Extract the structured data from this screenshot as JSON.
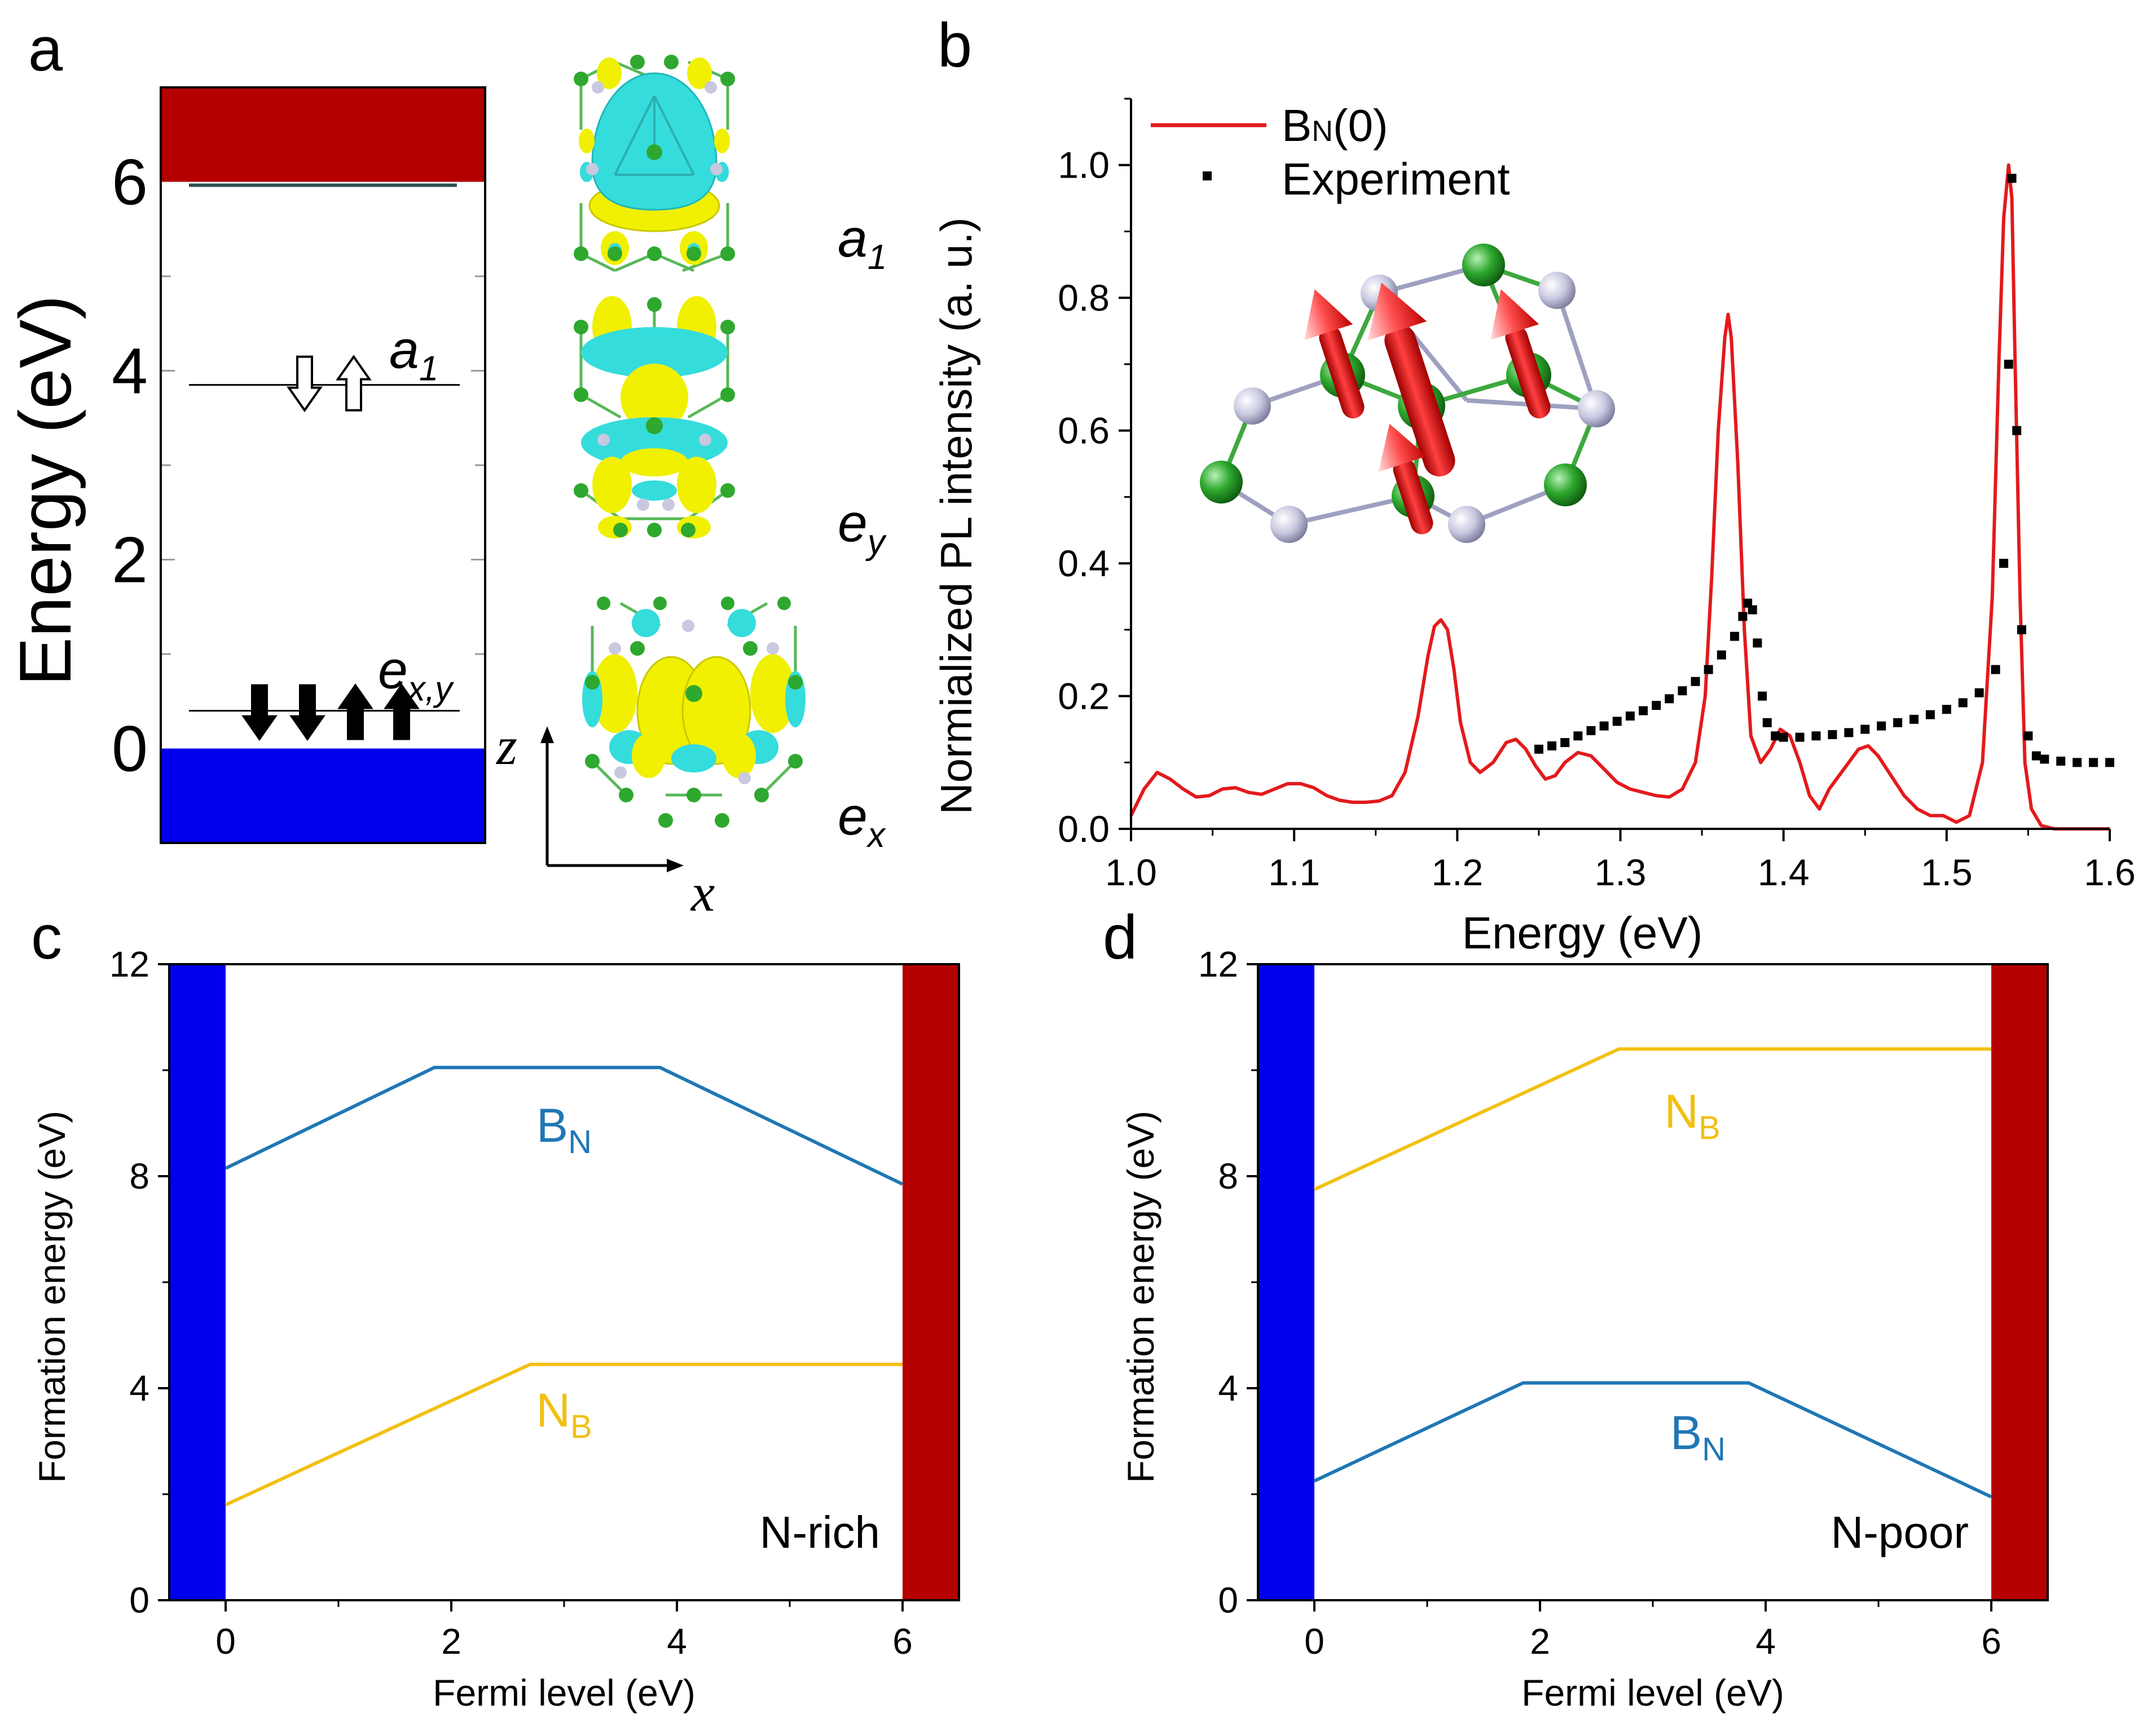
{
  "colors": {
    "vbm": "#0000ee",
    "cbm": "#b50000",
    "bn_pl": "#e31a1c",
    "experiment": "#000000",
    "bn_defect": "#1f77b4",
    "nb_defect": "#f2c012",
    "iso_yellow": "#f0f000",
    "iso_cyan": "#34dcdc",
    "atom_n": "#2ea82e",
    "atom_b": "#c8c8e0",
    "spin_arrow": "#e8161c"
  },
  "icons": [
    "spin-down-arrow-icon",
    "spin-up-arrow-icon",
    "spin-moment-arrow-icon"
  ],
  "panels": {
    "a": {
      "label": "a",
      "ylabel": "Energy (eV)",
      "ylim": [
        -1,
        7
      ],
      "yticks": [
        "0",
        "2",
        "4",
        "6"
      ],
      "ytick_values": [
        0,
        2,
        4,
        6
      ],
      "vbm_top": 0,
      "cbm_bottom": 6,
      "levels": [
        {
          "name": "a1",
          "energy": 3.85,
          "label": "a",
          "sub": "1",
          "occupancy": "one down, one up (hollow)"
        },
        {
          "name": "exy",
          "energy": 0.4,
          "label": "e",
          "sub": "x,y",
          "occupancy": "two down, two up (filled)"
        }
      ],
      "orbitals": [
        {
          "label": "a",
          "sub": "1"
        },
        {
          "label": "e",
          "sub": "y"
        },
        {
          "label": "e",
          "sub": "x"
        }
      ],
      "axes": {
        "z": "z",
        "x": "x"
      }
    },
    "b": {
      "label": "b",
      "xlabel": "Energy (eV)",
      "ylabel": "Normialized PL intensity (a. u.)",
      "xticks": [
        "1.0",
        "1.1",
        "1.2",
        "1.3",
        "1.4",
        "1.5",
        "1.6"
      ],
      "yticks": [
        "0.0",
        "0.2",
        "0.4",
        "0.6",
        "0.8",
        "1.0"
      ],
      "legend": [
        {
          "label": "B",
          "sub": "N",
          "suffix": "(0)"
        },
        {
          "label": "Experiment"
        }
      ]
    },
    "c": {
      "label": "c",
      "xlabel": "Fermi level (eV)",
      "ylabel": "Formation energy (eV)",
      "xticks": [
        "0",
        "2",
        "4",
        "6"
      ],
      "yticks": [
        "0",
        "4",
        "8",
        "12"
      ],
      "condition": "N-rich",
      "defect_labels": [
        {
          "label": "B",
          "sub": "N"
        },
        {
          "label": "N",
          "sub": "B"
        }
      ]
    },
    "d": {
      "label": "d",
      "xlabel": "Fermi level (eV)",
      "ylabel": "Formation energy (eV)",
      "xticks": [
        "0",
        "2",
        "4",
        "6"
      ],
      "yticks": [
        "0",
        "4",
        "8",
        "12"
      ],
      "condition": "N-poor",
      "defect_labels": [
        {
          "label": "N",
          "sub": "B"
        },
        {
          "label": "B",
          "sub": "N"
        }
      ]
    }
  },
  "chart_data": [
    {
      "panel": "a",
      "type": "energy-level diagram",
      "ylabel": "Energy (eV)",
      "ylim": [
        -1,
        7
      ],
      "bands": [
        {
          "name": "valence band",
          "from": -1,
          "to": 0,
          "color": "#0000ee"
        },
        {
          "name": "conduction band",
          "from": 6,
          "to": 7,
          "color": "#b50000"
        }
      ],
      "levels": [
        {
          "name": "a1",
          "energy": 3.85
        },
        {
          "name": "ex,y",
          "energy": 0.4
        }
      ]
    },
    {
      "panel": "b",
      "type": "line",
      "xlabel": "Energy (eV)",
      "ylabel": "Normialized PL intensity (a. u.)",
      "xlim": [
        1.0,
        1.6
      ],
      "ylim": [
        0,
        1.1
      ],
      "series": [
        {
          "name": "BN(0)",
          "style": "line",
          "x": [
            1.0,
            1.008,
            1.016,
            1.024,
            1.032,
            1.04,
            1.048,
            1.056,
            1.064,
            1.072,
            1.08,
            1.088,
            1.096,
            1.104,
            1.112,
            1.12,
            1.128,
            1.136,
            1.144,
            1.152,
            1.16,
            1.168,
            1.176,
            1.182,
            1.186,
            1.19,
            1.194,
            1.198,
            1.202,
            1.208,
            1.214,
            1.222,
            1.23,
            1.236,
            1.242,
            1.248,
            1.254,
            1.26,
            1.266,
            1.274,
            1.282,
            1.29,
            1.298,
            1.306,
            1.314,
            1.322,
            1.33,
            1.338,
            1.346,
            1.352,
            1.356,
            1.36,
            1.364,
            1.366,
            1.368,
            1.372,
            1.376,
            1.38,
            1.386,
            1.392,
            1.398,
            1.404,
            1.41,
            1.416,
            1.422,
            1.428,
            1.434,
            1.44,
            1.446,
            1.452,
            1.458,
            1.466,
            1.474,
            1.482,
            1.49,
            1.498,
            1.506,
            1.514,
            1.522,
            1.528,
            1.532,
            1.535,
            1.538,
            1.54,
            1.542,
            1.545,
            1.548,
            1.552,
            1.558,
            1.566,
            1.58,
            1.6
          ],
          "y": [
            0.02,
            0.06,
            0.085,
            0.075,
            0.06,
            0.048,
            0.05,
            0.06,
            0.062,
            0.055,
            0.052,
            0.06,
            0.068,
            0.068,
            0.062,
            0.05,
            0.043,
            0.04,
            0.04,
            0.042,
            0.05,
            0.085,
            0.17,
            0.26,
            0.305,
            0.315,
            0.3,
            0.24,
            0.16,
            0.1,
            0.085,
            0.1,
            0.13,
            0.135,
            0.12,
            0.095,
            0.075,
            0.08,
            0.1,
            0.115,
            0.11,
            0.09,
            0.07,
            0.06,
            0.055,
            0.05,
            0.048,
            0.06,
            0.1,
            0.2,
            0.38,
            0.6,
            0.74,
            0.775,
            0.74,
            0.55,
            0.3,
            0.14,
            0.1,
            0.12,
            0.15,
            0.14,
            0.1,
            0.05,
            0.03,
            0.06,
            0.08,
            0.1,
            0.12,
            0.125,
            0.11,
            0.08,
            0.05,
            0.03,
            0.02,
            0.02,
            0.01,
            0.02,
            0.1,
            0.35,
            0.7,
            0.92,
            1.0,
            0.95,
            0.7,
            0.35,
            0.1,
            0.03,
            0.005,
            0.0,
            0.0,
            0.0
          ]
        },
        {
          "name": "Experiment",
          "style": "markers",
          "x": [
            1.25,
            1.258,
            1.266,
            1.274,
            1.282,
            1.29,
            1.298,
            1.306,
            1.314,
            1.322,
            1.33,
            1.338,
            1.346,
            1.354,
            1.362,
            1.37,
            1.375,
            1.378,
            1.381,
            1.384,
            1.387,
            1.39,
            1.395,
            1.4,
            1.41,
            1.42,
            1.43,
            1.44,
            1.45,
            1.46,
            1.47,
            1.48,
            1.49,
            1.5,
            1.51,
            1.52,
            1.53,
            1.535,
            1.538,
            1.54,
            1.543,
            1.546,
            1.55,
            1.555,
            1.56,
            1.57,
            1.58,
            1.59,
            1.6
          ],
          "y": [
            0.12,
            0.125,
            0.13,
            0.14,
            0.148,
            0.155,
            0.162,
            0.17,
            0.178,
            0.186,
            0.196,
            0.208,
            0.222,
            0.24,
            0.262,
            0.29,
            0.32,
            0.34,
            0.33,
            0.28,
            0.2,
            0.16,
            0.14,
            0.138,
            0.138,
            0.14,
            0.142,
            0.145,
            0.15,
            0.155,
            0.16,
            0.165,
            0.172,
            0.18,
            0.19,
            0.205,
            0.24,
            0.4,
            0.7,
            0.98,
            0.6,
            0.3,
            0.14,
            0.11,
            0.105,
            0.102,
            0.1,
            0.1,
            0.1
          ]
        }
      ]
    },
    {
      "panel": "c",
      "type": "line",
      "xlabel": "Fermi level (eV)",
      "ylabel": "Formation energy (eV)",
      "xlim": [
        -0.5,
        6.5
      ],
      "ylim": [
        0,
        12
      ],
      "series": [
        {
          "name": "BN",
          "x": [
            0,
            1.85,
            3.85,
            6
          ],
          "y": [
            8.15,
            10.05,
            10.05,
            7.85
          ]
        },
        {
          "name": "NB",
          "x": [
            0,
            2.7,
            6
          ],
          "y": [
            1.8,
            4.45,
            4.45
          ]
        }
      ]
    },
    {
      "panel": "d",
      "type": "line",
      "xlabel": "Fermi level (eV)",
      "ylabel": "Formation energy (eV)",
      "xlim": [
        -0.5,
        6.5
      ],
      "ylim": [
        0,
        12
      ],
      "series": [
        {
          "name": "NB",
          "x": [
            0,
            2.7,
            6
          ],
          "y": [
            7.75,
            10.4,
            10.4
          ]
        },
        {
          "name": "BN",
          "x": [
            0,
            1.85,
            3.85,
            6
          ],
          "y": [
            2.25,
            4.1,
            4.1,
            1.95
          ]
        }
      ]
    }
  ]
}
